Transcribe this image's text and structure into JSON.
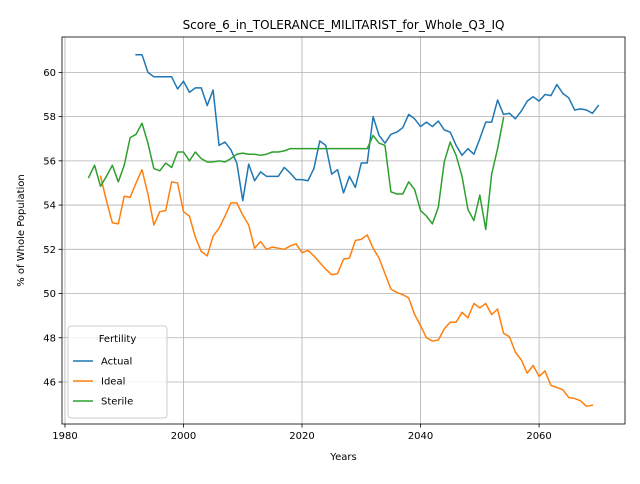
{
  "chart_data": {
    "type": "line",
    "title": "Score_6_in_TOLERANCE_MILITARIST_for_Whole_Q3_IQ",
    "xlabel": "Years",
    "ylabel": "% of Whole Population",
    "xlim": [
      1979.5,
      2074.5
    ],
    "ylim": [
      44.1,
      61.6
    ],
    "xticks": [
      1980,
      2000,
      2020,
      2040,
      2060
    ],
    "yticks": [
      46,
      48,
      50,
      52,
      54,
      56,
      58,
      60
    ],
    "grid": true,
    "legend": {
      "title": "Fertility",
      "position": "lower-left"
    },
    "series": [
      {
        "name": "Actual",
        "color": "#1f77b4",
        "x": [
          1992,
          1993,
          1994,
          1995,
          1996,
          1997,
          1998,
          1999,
          2000,
          2001,
          2002,
          2003,
          2004,
          2005,
          2006,
          2007,
          2008,
          2009,
          2010,
          2011,
          2012,
          2013,
          2014,
          2015,
          2016,
          2017,
          2018,
          2019,
          2020,
          2021,
          2022,
          2023,
          2024,
          2025,
          2026,
          2027,
          2028,
          2029,
          2030,
          2031,
          2032,
          2033,
          2034,
          2035,
          2036,
          2037,
          2038,
          2039,
          2040,
          2041,
          2042,
          2043,
          2044,
          2045,
          2046,
          2047,
          2048,
          2049,
          2050,
          2051,
          2052,
          2053,
          2054,
          2055,
          2056,
          2057,
          2058,
          2059,
          2060,
          2061,
          2062,
          2063,
          2064,
          2065,
          2066,
          2067,
          2068,
          2069,
          2070
        ],
        "y": [
          60.8,
          60.8,
          60.0,
          59.8,
          59.8,
          59.8,
          59.8,
          59.25,
          59.6,
          59.1,
          59.3,
          59.3,
          58.5,
          59.2,
          56.7,
          56.85,
          56.5,
          55.9,
          54.2,
          55.85,
          55.1,
          55.5,
          55.3,
          55.3,
          55.3,
          55.7,
          55.45,
          55.15,
          55.15,
          55.1,
          55.65,
          56.9,
          56.7,
          55.4,
          55.6,
          54.55,
          55.3,
          54.8,
          55.9,
          55.9,
          58.0,
          57.15,
          56.8,
          57.2,
          57.3,
          57.5,
          58.1,
          57.9,
          57.55,
          57.75,
          57.55,
          57.8,
          57.4,
          57.3,
          56.7,
          56.25,
          56.55,
          56.3,
          57.0,
          57.75,
          57.75,
          58.75,
          58.1,
          58.15,
          57.9,
          58.25,
          58.7,
          58.9,
          58.7,
          59.0,
          58.95,
          59.45,
          59.05,
          58.85,
          58.3,
          58.35,
          58.3,
          58.15,
          58.5
        ]
      },
      {
        "name": "Ideal",
        "color": "#ff7f0e",
        "x": [
          1986,
          1987,
          1988,
          1989,
          1990,
          1991,
          1992,
          1993,
          1994,
          1995,
          1996,
          1997,
          1998,
          1999,
          2000,
          2001,
          2002,
          2003,
          2004,
          2005,
          2006,
          2007,
          2008,
          2009,
          2010,
          2011,
          2012,
          2013,
          2014,
          2015,
          2016,
          2017,
          2018,
          2019,
          2020,
          2021,
          2022,
          2023,
          2024,
          2025,
          2026,
          2027,
          2028,
          2029,
          2030,
          2031,
          2032,
          2033,
          2034,
          2035,
          2036,
          2037,
          2038,
          2039,
          2040,
          2041,
          2042,
          2043,
          2044,
          2045,
          2046,
          2047,
          2048,
          2049,
          2050,
          2051,
          2052,
          2053,
          2054,
          2055,
          2056,
          2057,
          2058,
          2059,
          2060,
          2061,
          2062,
          2063,
          2064,
          2065,
          2066,
          2067,
          2068,
          2069,
          2070
        ],
        "y": [
          55.3,
          54.2,
          53.2,
          53.15,
          54.4,
          54.35,
          55.0,
          55.6,
          54.5,
          53.1,
          53.7,
          53.75,
          55.05,
          55.0,
          53.7,
          53.5,
          52.55,
          51.9,
          51.7,
          52.6,
          52.95,
          53.5,
          54.1,
          54.1,
          53.55,
          53.1,
          52.05,
          52.35,
          52.0,
          52.1,
          52.05,
          52.0,
          52.15,
          52.25,
          51.85,
          51.95,
          51.7,
          51.4,
          51.1,
          50.85,
          50.9,
          51.55,
          51.6,
          52.4,
          52.45,
          52.65,
          52.05,
          51.6,
          50.9,
          50.2,
          50.05,
          49.95,
          49.8,
          49.05,
          48.55,
          48.0,
          47.85,
          47.9,
          48.4,
          48.7,
          48.7,
          49.15,
          48.9,
          49.55,
          49.35,
          49.55,
          49.05,
          49.3,
          48.2,
          48.05,
          47.35,
          47.0,
          46.4,
          46.75,
          46.25,
          46.5,
          45.85,
          45.75,
          45.65,
          45.3,
          45.25,
          45.15,
          44.9,
          44.95,
          null
        ]
      },
      {
        "name": "Sterile",
        "color": "#2ca02c",
        "x": [
          1984,
          1985,
          1986,
          1987,
          1988,
          1989,
          1990,
          1991,
          1992,
          1993,
          1994,
          1995,
          1996,
          1997,
          1998,
          1999,
          2000,
          2001,
          2002,
          2003,
          2004,
          2005,
          2006,
          2007,
          2008,
          2009,
          2010,
          2011,
          2012,
          2013,
          2014,
          2015,
          2016,
          2017,
          2018,
          2019,
          2020,
          2021,
          2022,
          2023,
          2024,
          2025,
          2026,
          2027,
          2028,
          2029,
          2030,
          2031,
          2032,
          2033,
          2034,
          2035,
          2036,
          2037,
          2038,
          2039,
          2040,
          2041,
          2042,
          2043,
          2044,
          2045,
          2046,
          2047,
          2048,
          2049,
          2050,
          2051,
          2052,
          2053,
          2054
        ],
        "y": [
          55.25,
          55.8,
          54.85,
          55.3,
          55.8,
          55.05,
          55.8,
          57.05,
          57.2,
          57.7,
          56.8,
          55.65,
          55.55,
          55.9,
          55.7,
          56.4,
          56.4,
          56.0,
          56.4,
          56.1,
          55.95,
          55.95,
          56.0,
          55.95,
          56.1,
          56.3,
          56.35,
          56.3,
          56.3,
          56.25,
          56.3,
          56.4,
          56.4,
          56.45,
          56.55,
          56.55,
          56.55,
          56.55,
          56.55,
          56.55,
          56.55,
          56.55,
          56.55,
          56.55,
          56.55,
          56.55,
          56.55,
          56.55,
          57.15,
          56.8,
          56.7,
          54.6,
          54.5,
          54.5,
          55.05,
          54.7,
          53.75,
          53.5,
          53.15,
          53.9,
          55.95,
          56.85,
          56.25,
          55.3,
          53.8,
          53.3,
          54.45,
          52.9,
          55.4,
          56.55,
          57.95
        ]
      }
    ]
  }
}
